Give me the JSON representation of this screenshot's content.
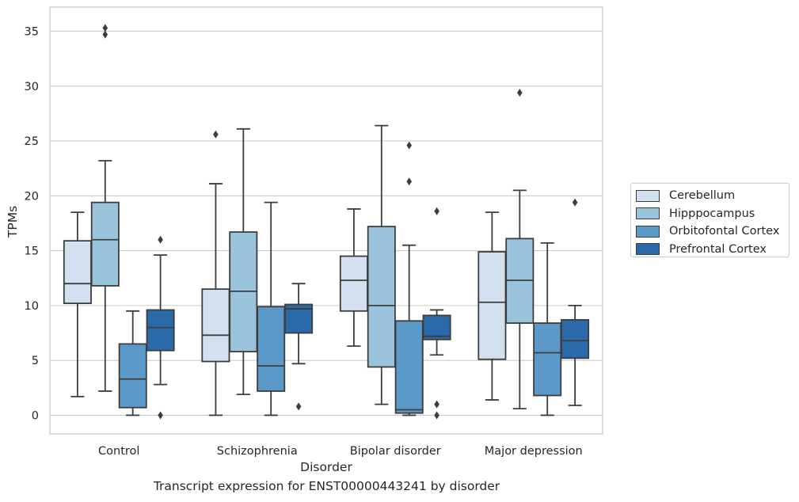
{
  "chart_data": {
    "type": "box",
    "title": "",
    "caption": "Transcript expression for ENST00000443241 by disorder",
    "xlabel": "Disorder",
    "ylabel": "TPMs",
    "ylim": [
      -1.7,
      37.2
    ],
    "yticks": [
      0,
      5,
      10,
      15,
      20,
      25,
      30,
      35
    ],
    "grid": true,
    "legend_position": "right",
    "categories": [
      "Control",
      "Schizophrenia",
      "Bipolar disorder",
      "Major depression"
    ],
    "series": [
      {
        "name": "Cerebellum",
        "color": "#d3e0ef",
        "boxes": [
          {
            "whislo": 1.7,
            "q1": 10.2,
            "med": 12.0,
            "q3": 15.9,
            "whishi": 18.5,
            "fliers": []
          },
          {
            "whislo": 0.0,
            "q1": 4.9,
            "med": 7.3,
            "q3": 11.5,
            "whishi": 21.1,
            "fliers": [
              25.6
            ]
          },
          {
            "whislo": 6.3,
            "q1": 9.5,
            "med": 12.3,
            "q3": 14.5,
            "whishi": 18.8,
            "fliers": []
          },
          {
            "whislo": 1.4,
            "q1": 5.1,
            "med": 10.3,
            "q3": 14.9,
            "whishi": 18.5,
            "fliers": []
          }
        ]
      },
      {
        "name": "Hipppocampus",
        "color": "#9ac4dc",
        "boxes": [
          {
            "whislo": 2.2,
            "q1": 11.8,
            "med": 16.0,
            "q3": 19.4,
            "whishi": 23.2,
            "fliers": [
              34.7,
              35.3
            ]
          },
          {
            "whislo": 1.9,
            "q1": 5.8,
            "med": 11.3,
            "q3": 16.7,
            "whishi": 26.1,
            "fliers": []
          },
          {
            "whislo": 1.0,
            "q1": 4.4,
            "med": 10.0,
            "q3": 17.2,
            "whishi": 26.4,
            "fliers": []
          },
          {
            "whislo": 0.6,
            "q1": 8.4,
            "med": 12.3,
            "q3": 16.1,
            "whishi": 20.5,
            "fliers": [
              29.4
            ]
          }
        ]
      },
      {
        "name": "Orbitofontal Cortex",
        "color": "#5b9ac8",
        "boxes": [
          {
            "whislo": 0.0,
            "q1": 0.7,
            "med": 3.3,
            "q3": 6.5,
            "whishi": 9.5,
            "fliers": []
          },
          {
            "whislo": 0.0,
            "q1": 2.2,
            "med": 4.5,
            "q3": 9.9,
            "whishi": 19.4,
            "fliers": []
          },
          {
            "whislo": 0.0,
            "q1": 0.2,
            "med": 0.5,
            "q3": 8.6,
            "whishi": 15.5,
            "fliers": [
              21.3,
              24.6
            ]
          },
          {
            "whislo": 0.0,
            "q1": 1.8,
            "med": 5.7,
            "q3": 8.4,
            "whishi": 15.7,
            "fliers": []
          }
        ]
      },
      {
        "name": "Prefrontal Cortex",
        "color": "#2a6aa8",
        "boxes": [
          {
            "whislo": 2.8,
            "q1": 5.9,
            "med": 8.0,
            "q3": 9.6,
            "whishi": 14.6,
            "fliers": [
              0.0,
              16.0
            ]
          },
          {
            "whislo": 4.7,
            "q1": 7.5,
            "med": 9.7,
            "q3": 10.1,
            "whishi": 12.0,
            "fliers": [
              0.8
            ]
          },
          {
            "whislo": 5.5,
            "q1": 6.9,
            "med": 7.2,
            "q3": 9.1,
            "whishi": 9.6,
            "fliers": [
              0.0,
              1.0,
              18.6
            ]
          },
          {
            "whislo": 0.9,
            "q1": 5.2,
            "med": 6.8,
            "q3": 8.7,
            "whishi": 10.0,
            "fliers": [
              19.4
            ]
          }
        ]
      }
    ]
  }
}
